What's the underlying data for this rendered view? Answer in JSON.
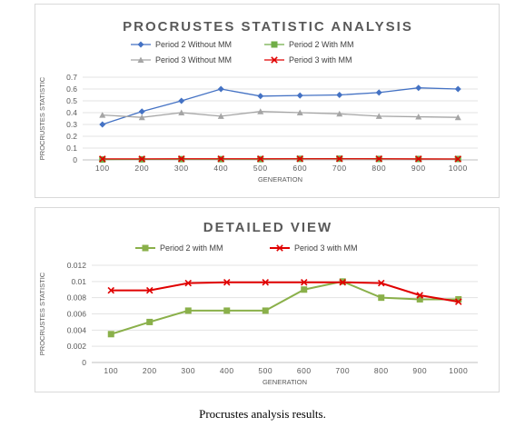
{
  "caption": "Procrustes analysis results.",
  "chart_data": [
    {
      "type": "line",
      "title": "PROCRUSTES STATISTIC ANALYSIS",
      "xlabel": "GENERATION",
      "ylabel": "PROCRUSTES STATISTIC",
      "ylim": [
        0,
        0.7
      ],
      "yticks": [
        "0",
        "0.1",
        "0.2",
        "0.3",
        "0.4",
        "0.5",
        "0.6",
        "0.7"
      ],
      "x": [
        "100",
        "200",
        "300",
        "400",
        "500",
        "600",
        "700",
        "800",
        "900",
        "1000"
      ],
      "grid": true,
      "legend_position": "top",
      "series": [
        {
          "name": "Period 2 Without MM",
          "color": "#4472c4",
          "marker": "diamond",
          "values": [
            0.3,
            0.41,
            0.5,
            0.6,
            0.54,
            0.545,
            0.55,
            0.57,
            0.61,
            0.6
          ]
        },
        {
          "name": "Period 2 With MM",
          "color": "#70ad47",
          "marker": "square",
          "values": [
            0.0035,
            0.005,
            0.0064,
            0.0064,
            0.0064,
            0.009,
            0.01,
            0.008,
            0.0078,
            0.0078
          ]
        },
        {
          "name": "Period 3 Without MM",
          "color": "#a5a5a5",
          "marker": "triangle",
          "values": [
            0.38,
            0.36,
            0.4,
            0.37,
            0.41,
            0.4,
            0.39,
            0.37,
            0.365,
            0.36
          ]
        },
        {
          "name": "Period 3 with MM",
          "color": "#e00000",
          "marker": "x",
          "values": [
            0.0089,
            0.0089,
            0.0098,
            0.0099,
            0.0099,
            0.0099,
            0.0099,
            0.0098,
            0.0083,
            0.0075
          ]
        }
      ]
    },
    {
      "type": "line",
      "title": "DETAILED VIEW",
      "xlabel": "GENERATION",
      "ylabel": "PROCRUSTES STATISTIC",
      "ylim": [
        0,
        0.012
      ],
      "yticks": [
        "0",
        "0.002",
        "0.004",
        "0.006",
        "0.008",
        "0.01",
        "0.012"
      ],
      "x": [
        "100",
        "200",
        "300",
        "400",
        "500",
        "600",
        "700",
        "800",
        "900",
        "1000"
      ],
      "grid": true,
      "legend_position": "top",
      "series": [
        {
          "name": "Period 2 with MM",
          "color": "#8ab04a",
          "marker": "square",
          "values": [
            0.0035,
            0.005,
            0.0064,
            0.0064,
            0.0064,
            0.009,
            0.01,
            0.008,
            0.0078,
            0.0078
          ]
        },
        {
          "name": "Period 3 with MM",
          "color": "#e00000",
          "marker": "x",
          "values": [
            0.0089,
            0.0089,
            0.0098,
            0.0099,
            0.0099,
            0.0099,
            0.0099,
            0.0098,
            0.0083,
            0.0075
          ]
        }
      ]
    }
  ]
}
